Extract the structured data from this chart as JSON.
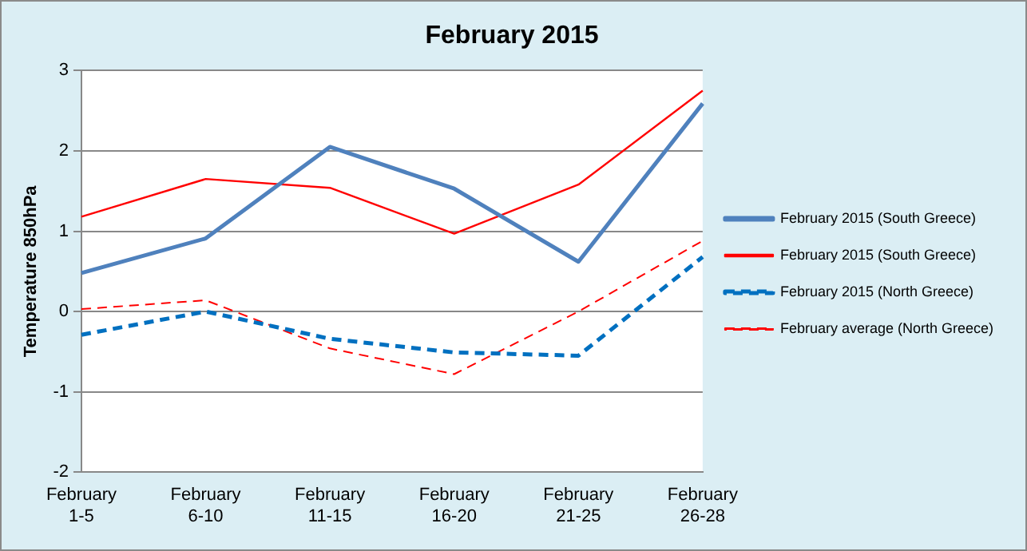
{
  "chart_data": {
    "type": "line",
    "title": "February 2015",
    "ylabel": "Temperature 850hPa",
    "categories": [
      "February 1-5",
      "February 6-10",
      "February 11-15",
      "February 16-20",
      "February 21-25",
      "February 26-28"
    ],
    "series": [
      {
        "name": "February 2015 (South Greece)",
        "color": "#4f81bd",
        "line_style": "solid",
        "values": [
          0.48,
          0.91,
          2.05,
          1.53,
          0.62,
          2.59
        ]
      },
      {
        "name": "February 2015 (South Greece)",
        "color": "#ff0000",
        "line_style": "solid",
        "values": [
          1.18,
          1.65,
          1.54,
          0.97,
          1.58,
          2.75
        ]
      },
      {
        "name": "February 2015 (North Greece)",
        "color": "#0070c0",
        "line_style": "dashed",
        "values": [
          -0.29,
          0,
          -0.34,
          -0.51,
          -0.55,
          0.68
        ]
      },
      {
        "name": "February average (North Greece)",
        "color": "#ff0000",
        "line_style": "dashed",
        "values": [
          0.03,
          0.14,
          -0.46,
          -0.78,
          0,
          0.88
        ]
      }
    ],
    "ylim": [
      -2,
      3
    ],
    "yticks": [
      -2,
      -1,
      0,
      1,
      2,
      3
    ],
    "grid": "y",
    "legend": "right",
    "marker": "none"
  }
}
